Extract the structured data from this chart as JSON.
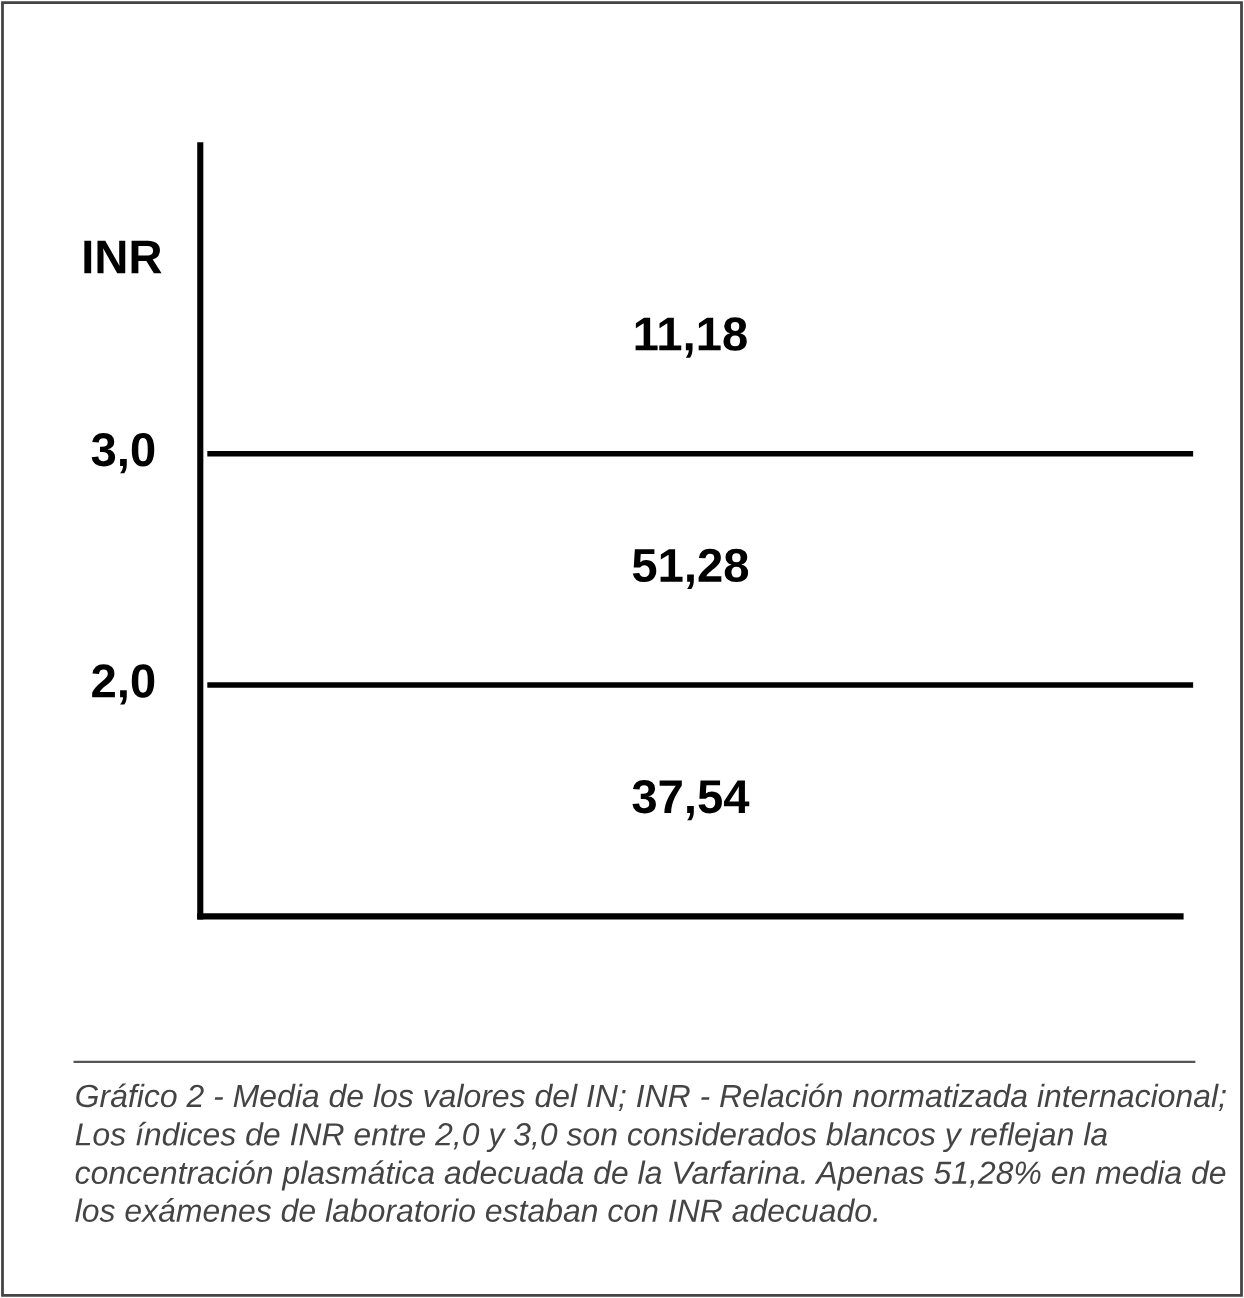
{
  "chart_data": {
    "type": "other",
    "ylabel": "INR",
    "categories": [
      null,
      null,
      null
    ],
    "values": [
      11.18,
      51.28,
      37.54
    ],
    "value_labels": [
      "11,18",
      "51,28",
      "37,54"
    ],
    "annotations": [
      "3,0",
      "2,0",
      "Gráfico 2 - Media de los valores del IN; INR - Relación normatizada internacional; Los índices de INR entre 2,0 y 3,0 son considerados blancos y reflejan la concentración plasmática adecuada de la Varfarina. Apenas 51,28% en media de los exámenes de laboratorio estaban con INR adecuado."
    ]
  }
}
